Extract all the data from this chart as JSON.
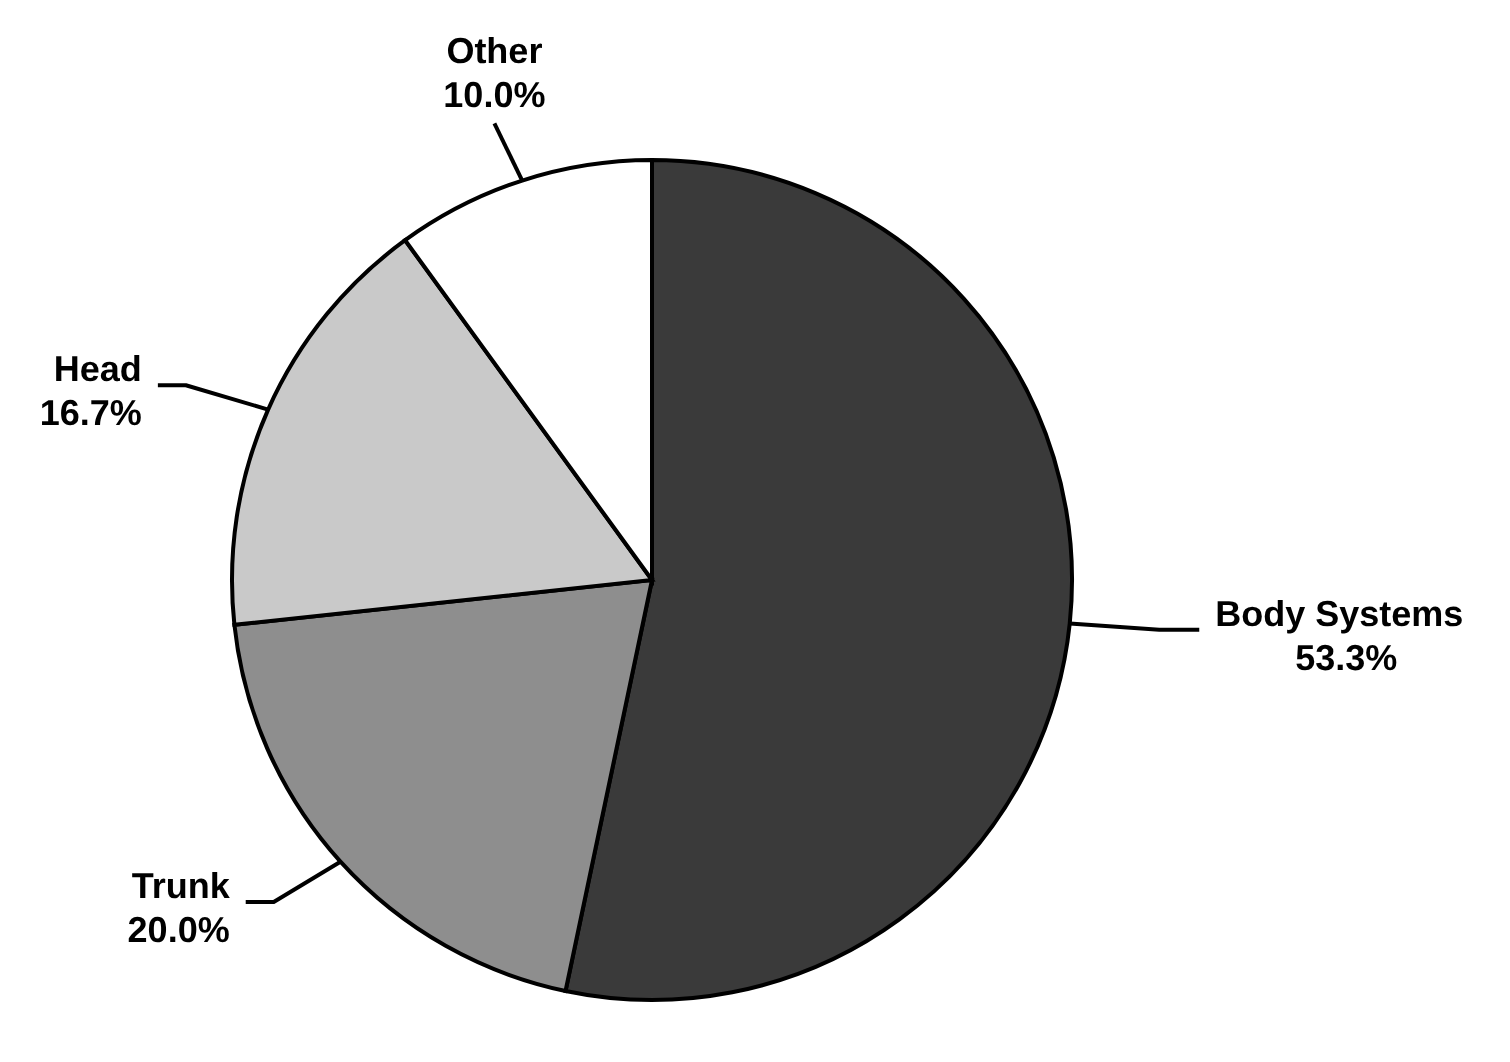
{
  "chart_data": {
    "type": "pie",
    "categories": [
      "Body Systems",
      "Trunk",
      "Head",
      "Other"
    ],
    "values": [
      53.3,
      20.0,
      16.7,
      10.0
    ],
    "colors": [
      "#3a3a3a",
      "#8e8e8e",
      "#c9c9c9",
      "#ffffff"
    ],
    "value_labels": [
      "53.3%",
      "20.0%",
      "16.7%",
      "10.0%"
    ]
  }
}
